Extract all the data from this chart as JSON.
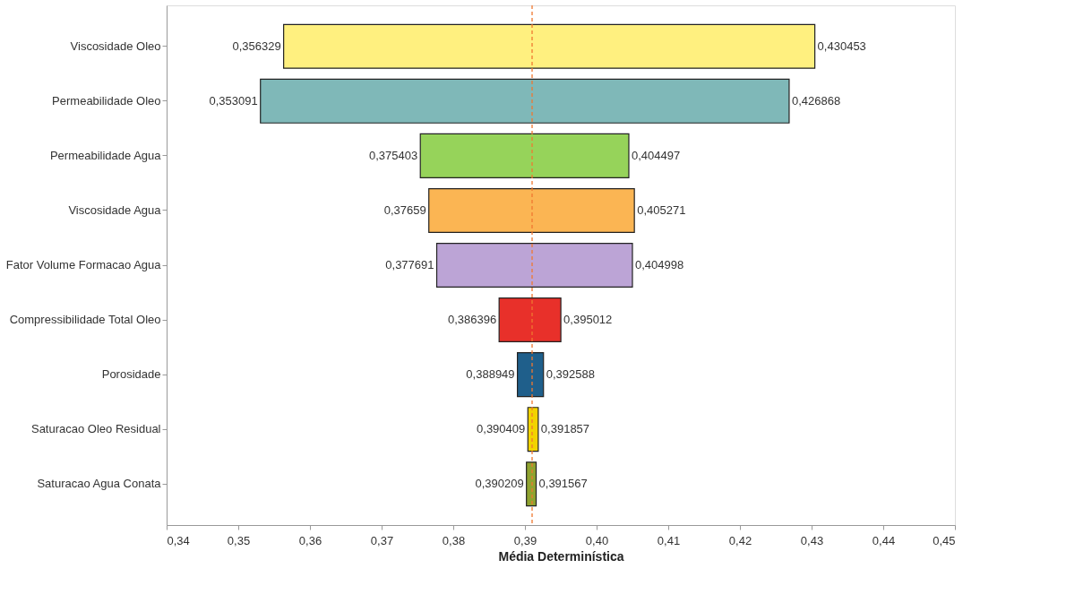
{
  "chart_data": {
    "type": "bar",
    "orientation": "horizontal",
    "xlabel": "Média Determinística",
    "categories": [
      "Viscosidade Oleo",
      "Permeabilidade Oleo",
      "Permeabilidade Agua",
      "Viscosidade Agua",
      "Fator Volume Formacao Agua",
      "Compressibilidade Total Oleo",
      "Porosidade",
      "Saturacao Oleo Residual",
      "Saturacao Agua Conata"
    ],
    "base": [
      0.356329,
      0.353091,
      0.375403,
      0.37659,
      0.377691,
      0.386396,
      0.388949,
      0.390409,
      0.390209
    ],
    "values": [
      0.074124,
      0.073777,
      0.029094,
      0.028681,
      0.027307,
      0.008616,
      0.003639,
      0.001448,
      0.001358
    ],
    "colors": [
      "#fff07f",
      "#7fb8b8",
      "#96d35a",
      "#fbb553",
      "#bca4d6",
      "#e8302a",
      "#1f5f8b",
      "#f2d300",
      "#8fa330"
    ],
    "xlim": [
      0.34,
      0.45
    ],
    "xticks": [
      {
        "value": 0.34,
        "label": "0,34"
      },
      {
        "value": 0.35,
        "label": "0,35"
      },
      {
        "value": 0.36,
        "label": "0,36"
      },
      {
        "value": 0.37,
        "label": "0,37"
      },
      {
        "value": 0.38,
        "label": "0,38"
      },
      {
        "value": 0.39,
        "label": "0,39"
      },
      {
        "value": 0.4,
        "label": "0,40"
      },
      {
        "value": 0.41,
        "label": "0,41"
      },
      {
        "value": 0.42,
        "label": "0,42"
      },
      {
        "value": 0.43,
        "label": "0,43"
      },
      {
        "value": 0.44,
        "label": "0,44"
      },
      {
        "value": 0.45,
        "label": "0,45"
      }
    ],
    "ref_lines": [
      {
        "axis": "x",
        "value": 0.391,
        "color": "#f07830",
        "line_style": "dashed"
      }
    ],
    "grid": false,
    "annotations": [
      {
        "text": "0,356329",
        "x": 0.356329,
        "y": "Viscosidade Oleo"
      },
      {
        "text": "0,430453",
        "x": 0.430453,
        "y": "Viscosidade Oleo"
      },
      {
        "text": "0,353091",
        "x": 0.353091,
        "y": "Permeabilidade Oleo"
      },
      {
        "text": "0,426868",
        "x": 0.426868,
        "y": "Permeabilidade Oleo"
      },
      {
        "text": "0,375403",
        "x": 0.375403,
        "y": "Permeabilidade Agua"
      },
      {
        "text": "0,404497",
        "x": 0.404497,
        "y": "Permeabilidade Agua"
      },
      {
        "text": "0,37659",
        "x": 0.37659,
        "y": "Viscosidade Agua"
      },
      {
        "text": "0,405271",
        "x": 0.405271,
        "y": "Viscosidade Agua"
      },
      {
        "text": "0,377691",
        "x": 0.377691,
        "y": "Fator Volume Formacao Agua"
      },
      {
        "text": "0,404998",
        "x": 0.404998,
        "y": "Fator Volume Formacao Agua"
      },
      {
        "text": "0,386396",
        "x": 0.386396,
        "y": "Compressibilidade Total Oleo"
      },
      {
        "text": "0,395012",
        "x": 0.395012,
        "y": "Compressibilidade Total Oleo"
      },
      {
        "text": "0,388949",
        "x": 0.388949,
        "y": "Porosidade"
      },
      {
        "text": "0,392588",
        "x": 0.392588,
        "y": "Porosidade"
      },
      {
        "text": "0,390409",
        "x": 0.390409,
        "y": "Saturacao Oleo Residual"
      },
      {
        "text": "0,391857",
        "x": 0.391857,
        "y": "Saturacao Oleo Residual"
      },
      {
        "text": "0,390209",
        "x": 0.390209,
        "y": "Saturacao Agua Conata"
      },
      {
        "text": "0,391567",
        "x": 0.391567,
        "y": "Saturacao Agua Conata"
      }
    ]
  }
}
